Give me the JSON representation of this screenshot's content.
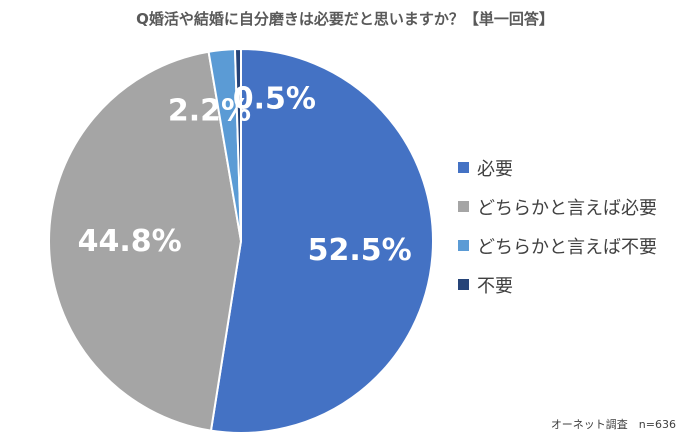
{
  "title": "Q婚活や結婚に自分磨きは必要だと思いますか？【単一回答】",
  "source_note": "オーネット調査　n=636",
  "chart_data": {
    "type": "pie",
    "title": "Q婚活や結婚に自分磨きは必要だと思いますか？【単一回答】",
    "categories": [
      "必要",
      "どちらかと言えば必要",
      "どちらかと言えば不要",
      "不要"
    ],
    "values": [
      52.5,
      44.8,
      2.2,
      0.5
    ],
    "value_labels": [
      "52.5%",
      "44.8%",
      "2.2%",
      "0.5%"
    ],
    "colors": [
      "#4472C4",
      "#A5A5A5",
      "#5B9BD5",
      "#264478"
    ],
    "start": "12 o'clock, clockwise",
    "legend_position": "right"
  }
}
